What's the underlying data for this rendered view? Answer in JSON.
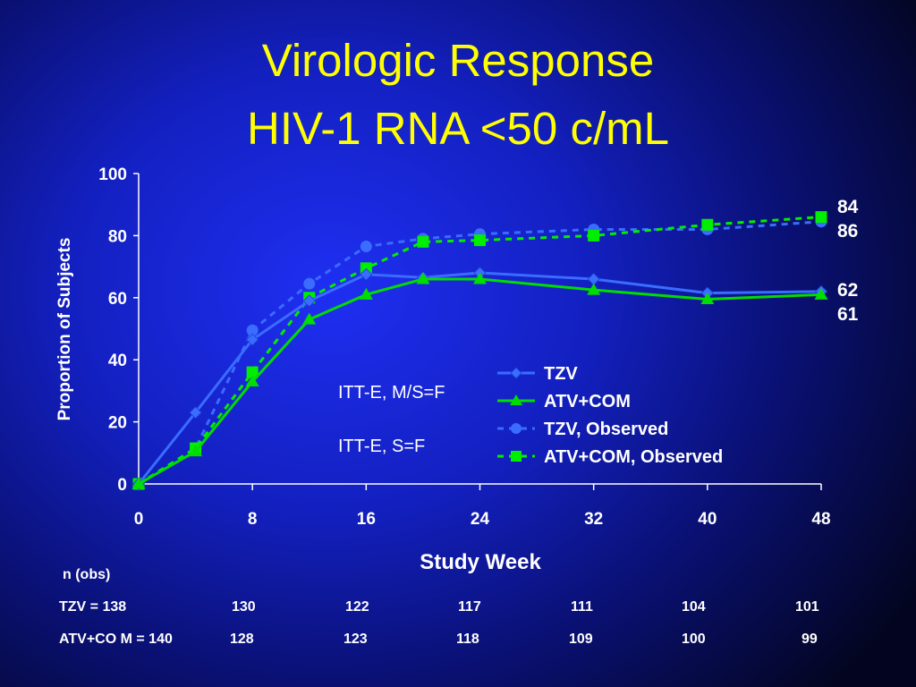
{
  "title": {
    "line1": "Virologic Response",
    "line2": "HIV-1 RNA <50 c/mL"
  },
  "colors": {
    "title": "#ffff00",
    "tzv": "#3a6cff",
    "atv": "#00dd00",
    "tzv_obs": "#3a6cff",
    "atv_obs": "#00ee00",
    "text": "#ffffff"
  },
  "chart_data": {
    "type": "line",
    "title": "",
    "xlabel": "Study Week",
    "ylabel": "Proportion of Subjects",
    "xlim": [
      0,
      48
    ],
    "ylim": [
      0,
      100
    ],
    "xticks": [
      0,
      8,
      16,
      24,
      32,
      40,
      48
    ],
    "yticks": [
      0,
      20,
      40,
      60,
      80,
      100
    ],
    "grid": false,
    "legend_position": "lower-right",
    "series": [
      {
        "name": "TZV",
        "style": "solid",
        "marker": "diamond",
        "color": "#3a6cff",
        "x": [
          0,
          4,
          8,
          12,
          16,
          20,
          24,
          32,
          40,
          48
        ],
        "y": [
          0,
          23,
          46.5,
          59,
          67.5,
          66.5,
          68,
          66,
          61.5,
          62
        ]
      },
      {
        "name": "ATV+COM",
        "style": "solid",
        "marker": "triangle",
        "color": "#00dd00",
        "x": [
          0,
          4,
          8,
          12,
          16,
          20,
          24,
          32,
          40,
          48
        ],
        "y": [
          0,
          10.5,
          33,
          53,
          61,
          66,
          66,
          62.5,
          59.5,
          61
        ]
      },
      {
        "name": "TZV, Observed",
        "style": "dashed",
        "marker": "circle",
        "color": "#3a6cff",
        "x": [
          0,
          4,
          8,
          12,
          16,
          20,
          24,
          32,
          40,
          48
        ],
        "y": [
          0,
          11.5,
          49.5,
          64.5,
          76.5,
          79,
          80.5,
          82,
          82,
          84.5
        ]
      },
      {
        "name": "ATV+COM, Observed",
        "style": "dashed",
        "marker": "square",
        "color": "#00ee00",
        "x": [
          0,
          4,
          8,
          12,
          16,
          20,
          24,
          32,
          40,
          48
        ],
        "y": [
          0,
          11.5,
          36,
          60,
          69.5,
          78,
          78.5,
          80,
          83.5,
          86
        ]
      }
    ],
    "end_labels": [
      "84",
      "86",
      "62",
      "61"
    ],
    "annotations": [
      "ITT-E, M/S=F",
      "ITT-E, S=F"
    ]
  },
  "observations": {
    "header": "n (obs)",
    "rows": [
      {
        "label": "TZV  = 138",
        "values": [
          "130",
          "122",
          "117",
          "111",
          "104",
          "101"
        ]
      },
      {
        "label": "ATV+CO M = 140",
        "values": [
          "128",
          "123",
          "118",
          "109",
          "100",
          "99"
        ]
      }
    ]
  }
}
